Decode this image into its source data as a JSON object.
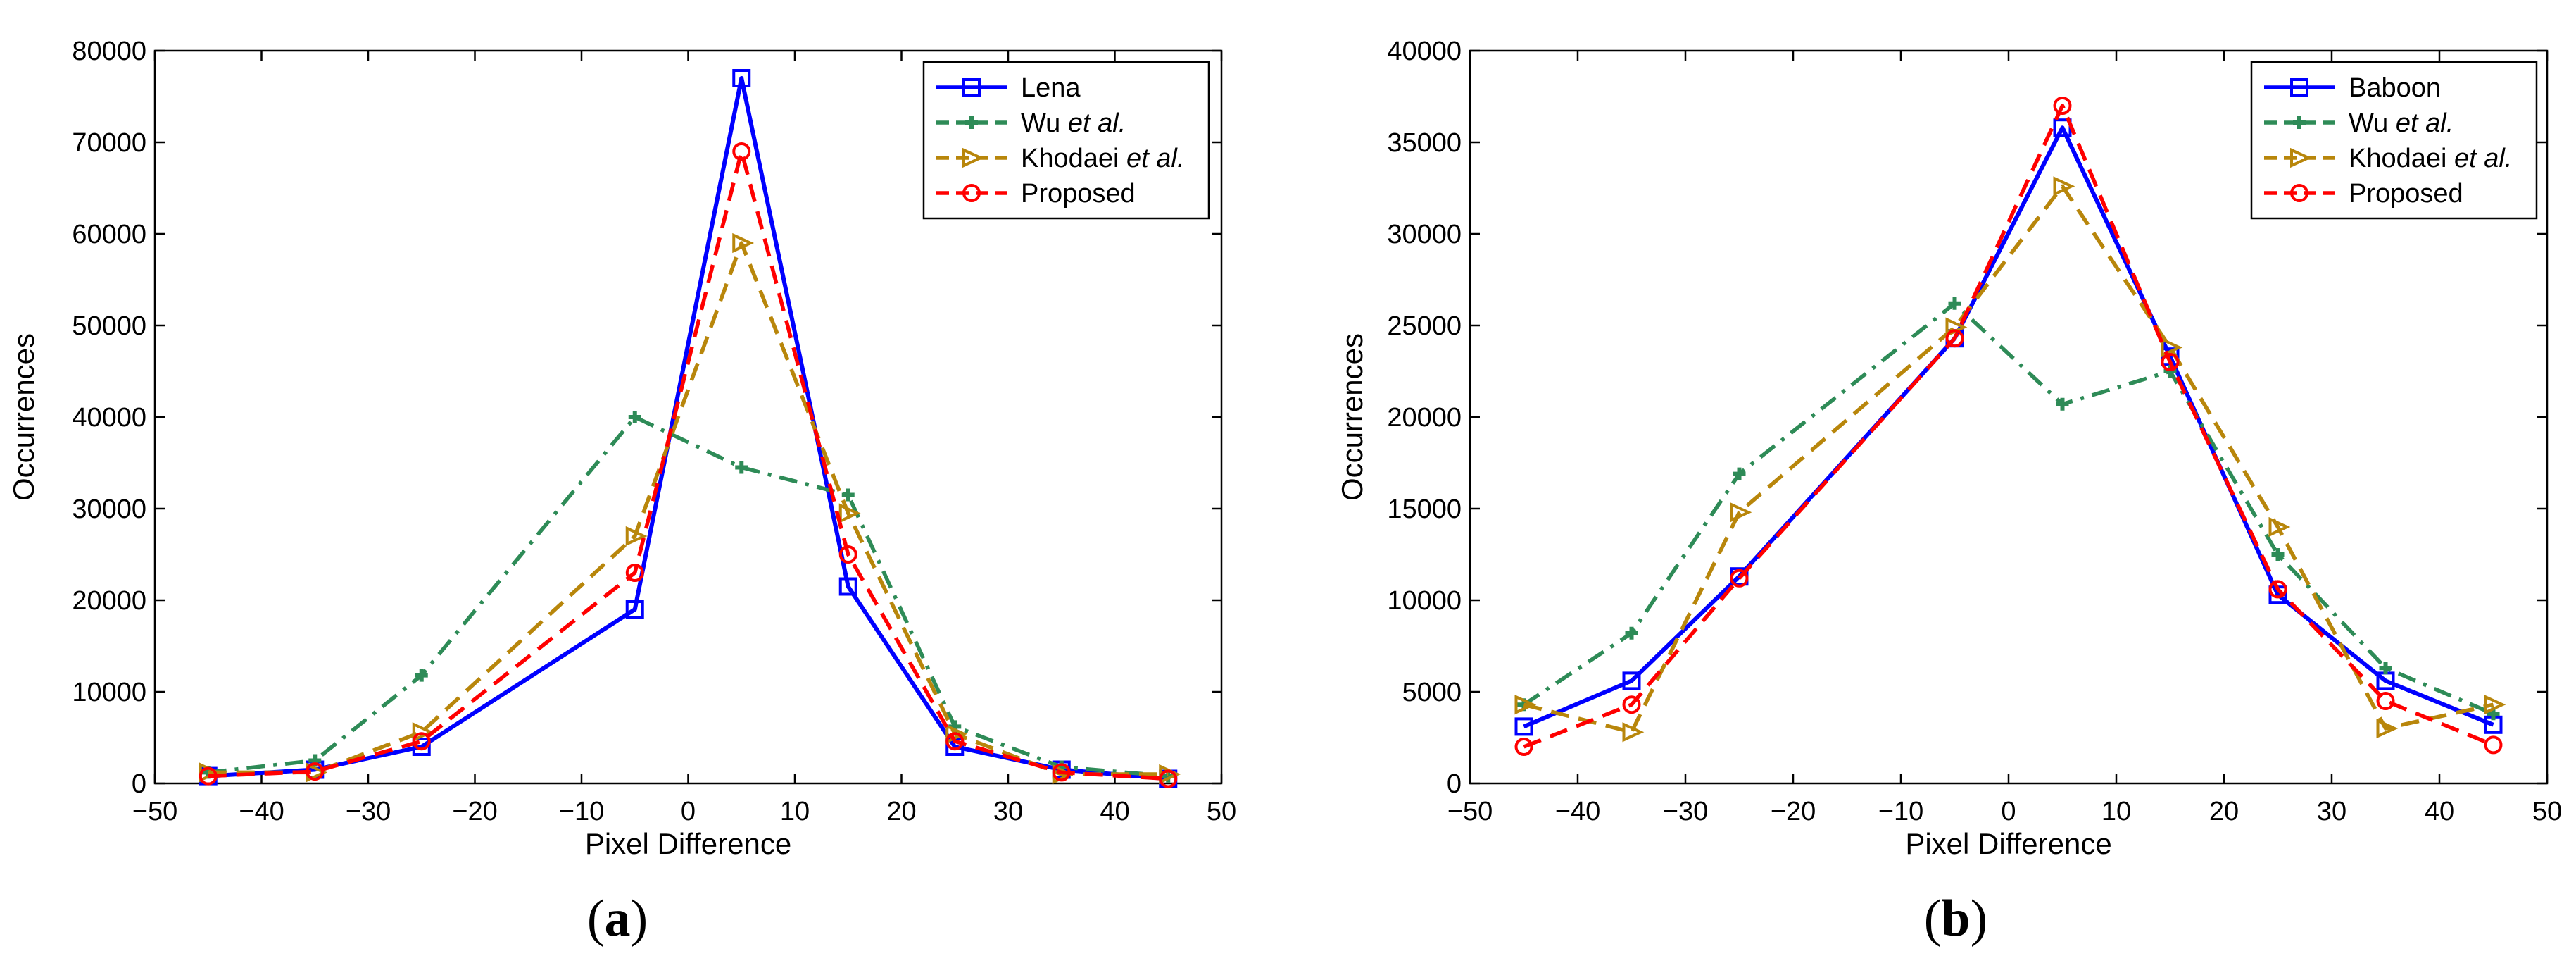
{
  "chart_data": [
    {
      "type": "line",
      "panel_label": {
        "open": "(",
        "letter": "a",
        "close": ")"
      },
      "xlabel": "Pixel Difference",
      "ylabel": "Occurrences",
      "xlim": [
        -50,
        50
      ],
      "ylim": [
        0,
        80000
      ],
      "xticks": [
        "−50",
        "−40",
        "−30",
        "−20",
        "−10",
        "0",
        "10",
        "20",
        "30",
        "40",
        "50"
      ],
      "yticks": [
        "0",
        "10000",
        "20000",
        "30000",
        "40000",
        "50000",
        "60000",
        "70000",
        "80000"
      ],
      "x": [
        -45,
        -35,
        -25,
        -5,
        5,
        15,
        25,
        35,
        45
      ],
      "series": [
        {
          "name": "Lena",
          "name_italic": "",
          "color": "#0000FF",
          "marker": "square",
          "dash": "solid",
          "values": [
            800,
            1500,
            4000,
            19000,
            77000,
            21500,
            4000,
            1500,
            500
          ]
        },
        {
          "name": "Wu ",
          "name_italic": "et al.",
          "color": "#2E8B57",
          "marker": "plus",
          "dash": "dashdot",
          "values": [
            1200,
            2500,
            11800,
            40000,
            34500,
            31500,
            6200,
            1800,
            800
          ]
        },
        {
          "name": "Khodaei ",
          "name_italic": "et al.",
          "color": "#B8860B",
          "marker": "triangle-right",
          "dash": "dashed",
          "values": [
            1200,
            1200,
            5600,
            27000,
            59000,
            29500,
            5400,
            1000,
            1000
          ]
        },
        {
          "name": "Proposed",
          "name_italic": "",
          "color": "#FF0000",
          "marker": "circle",
          "dash": "dashed",
          "values": [
            800,
            1300,
            4600,
            23000,
            69000,
            25000,
            4600,
            1200,
            500
          ]
        }
      ]
    },
    {
      "type": "line",
      "panel_label": {
        "open": "(",
        "letter": "b",
        "close": ")"
      },
      "xlabel": "Pixel Difference",
      "ylabel": "Occurrences",
      "xlim": [
        -50,
        50
      ],
      "ylim": [
        0,
        40000
      ],
      "xticks": [
        "−50",
        "−40",
        "−30",
        "−20",
        "−10",
        "0",
        "10",
        "20",
        "30",
        "40",
        "50"
      ],
      "yticks": [
        "0",
        "5000",
        "10000",
        "15000",
        "20000",
        "25000",
        "30000",
        "35000",
        "40000"
      ],
      "x": [
        -45,
        -35,
        -25,
        -5,
        5,
        15,
        25,
        35,
        45
      ],
      "series": [
        {
          "name": "Baboon",
          "name_italic": "",
          "color": "#0000FF",
          "marker": "square",
          "dash": "solid",
          "values": [
            3100,
            5600,
            11300,
            24300,
            35800,
            23300,
            10300,
            5600,
            3200
          ]
        },
        {
          "name": "Wu ",
          "name_italic": "et al.",
          "color": "#2E8B57",
          "marker": "plus",
          "dash": "dashdot",
          "values": [
            4300,
            8200,
            16900,
            26200,
            20700,
            22500,
            12500,
            6300,
            3800
          ]
        },
        {
          "name": "Khodaei ",
          "name_italic": "et al.",
          "color": "#B8860B",
          "marker": "triangle-right",
          "dash": "dashed",
          "values": [
            4300,
            2800,
            14800,
            24900,
            32600,
            23800,
            14000,
            3000,
            4300
          ]
        },
        {
          "name": "Proposed",
          "name_italic": "",
          "color": "#FF0000",
          "marker": "circle",
          "dash": "dashed",
          "values": [
            2000,
            4300,
            11200,
            24300,
            37000,
            23000,
            10600,
            4500,
            2100
          ]
        }
      ]
    }
  ]
}
